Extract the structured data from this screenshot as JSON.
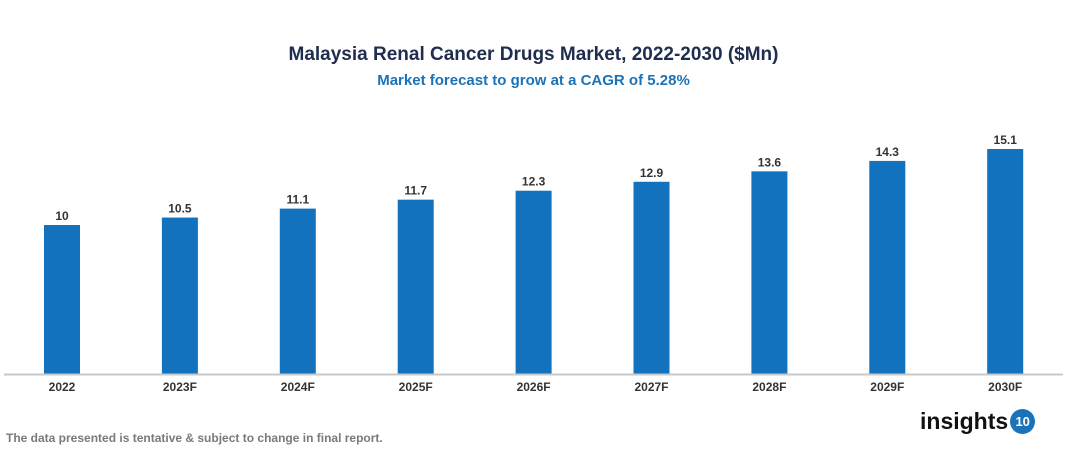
{
  "chart_data": {
    "type": "bar",
    "title": "Malaysia Renal Cancer Drugs Market, 2022-2030 ($Mn)",
    "subtitle": "Market forecast to grow at a CAGR of 5.28%",
    "categories": [
      "2022",
      "2023F",
      "2024F",
      "2025F",
      "2026F",
      "2027F",
      "2028F",
      "2029F",
      "2030F"
    ],
    "values": [
      10,
      10.5,
      11.1,
      11.7,
      12.3,
      12.9,
      13.6,
      14.3,
      15.1
    ],
    "value_labels": [
      "10",
      "10.5",
      "11.1",
      "11.7",
      "12.3",
      "12.9",
      "13.6",
      "14.3",
      "15.1"
    ],
    "xlabel": "",
    "ylabel": "",
    "ylim": [
      0,
      15.1
    ],
    "grid": false,
    "bar_color": "#1272bd"
  },
  "footer": {
    "note": "The data presented is tentative & subject to change in final report.",
    "logo_text": "insights",
    "logo_badge": "10"
  }
}
